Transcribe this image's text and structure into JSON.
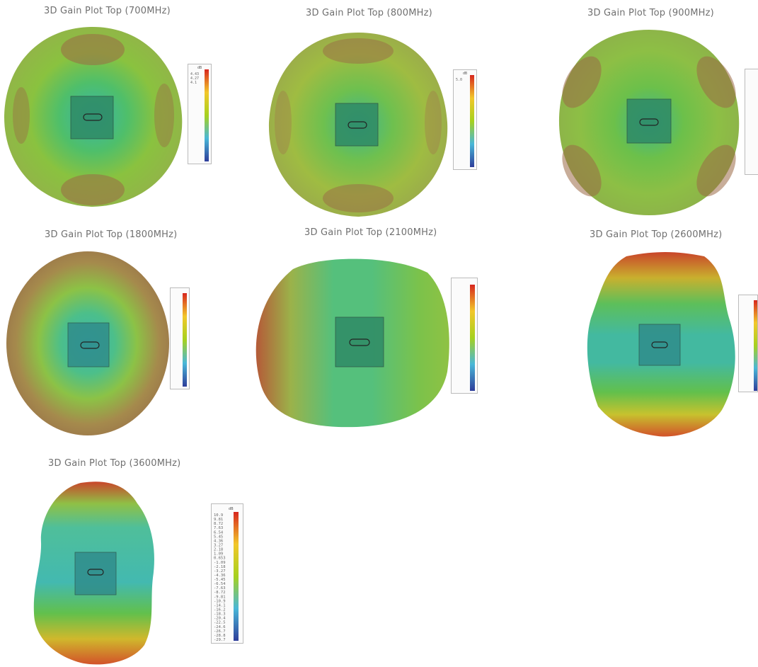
{
  "plots": [
    {
      "title": "3D Gain Plot Top (700MHz)",
      "cbar_unit": "dB",
      "cbar_labels": [
        "4.43",
        "4.27",
        "4.1"
      ]
    },
    {
      "title": "3D Gain Plot Top (800MHz)",
      "cbar_unit": "dB",
      "cbar_labels": [
        "5.0"
      ]
    },
    {
      "title": "3D Gain Plot Top (900MHz)",
      "cbar_unit": "dB",
      "cbar_labels": []
    },
    {
      "title": "3D Gain Plot Top (1800MHz)",
      "cbar_unit": "dB",
      "cbar_labels": []
    },
    {
      "title": "3D Gain Plot Top (2100MHz)",
      "cbar_unit": "dB",
      "cbar_labels": []
    },
    {
      "title": "3D Gain Plot Top (2600MHz)",
      "cbar_unit": "dB",
      "cbar_labels": []
    },
    {
      "title": "3D Gain Plot Top (3600MHz)",
      "cbar_unit": "dB",
      "cbar_labels": [
        "10.9",
        "9.81",
        "8.72",
        "7.63",
        "6.54",
        "5.45",
        "4.36",
        "3.27",
        "2.18",
        "1.09",
        "0.653",
        "-1.09",
        "-2.18",
        "-3.27",
        "-4.36",
        "-5.45",
        "-6.54",
        "-7.63",
        "-8.72",
        "-9.81",
        "-10.9",
        "-14.1",
        "-16.2",
        "-18.3",
        "-20.4",
        "-22.5",
        "-24.6",
        "-26.7",
        "-28.8",
        "-29.7"
      ]
    }
  ],
  "colors": {
    "title": "#707070",
    "scale_top": "#d7261e",
    "scale_mid": "#a6d11e",
    "scale_low": "#49b7d8",
    "scale_bottom": "#2e3d9a"
  }
}
